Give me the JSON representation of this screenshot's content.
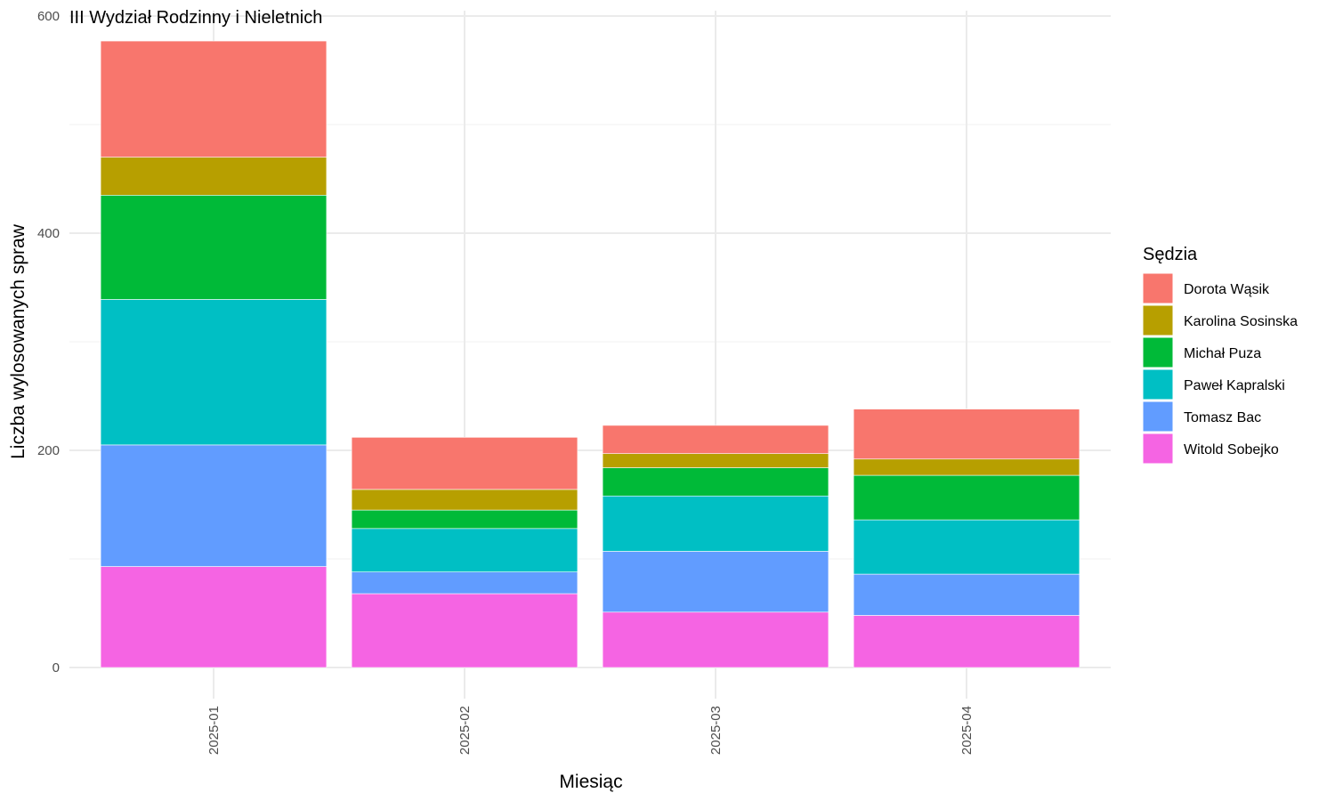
{
  "chart_data": {
    "type": "bar",
    "stacked": true,
    "title": "III Wydział Rodzinny i Nieletnich",
    "xlabel": "Miesiąc",
    "ylabel": "Liczba wylosowanych spraw",
    "ylim": [
      0,
      600
    ],
    "yticks": [
      0,
      200,
      400,
      600
    ],
    "grid": true,
    "legend_title": "Sędzia",
    "legend_position": "right",
    "categories": [
      "2025-01",
      "2025-02",
      "2025-03",
      "2025-04"
    ],
    "series": [
      {
        "name": "Dorota Wąsik",
        "color": "#F8766D",
        "values": [
          107,
          48,
          26,
          46
        ]
      },
      {
        "name": "Karolina Sosinska",
        "color": "#B79F00",
        "values": [
          35,
          19,
          13,
          15
        ]
      },
      {
        "name": "Michał Puza",
        "color": "#00BA38",
        "values": [
          96,
          17,
          26,
          41
        ]
      },
      {
        "name": "Paweł Kapralski",
        "color": "#00BFC4",
        "values": [
          134,
          40,
          51,
          50
        ]
      },
      {
        "name": "Tomasz Bac",
        "color": "#619CFF",
        "values": [
          112,
          20,
          56,
          38
        ]
      },
      {
        "name": "Witold Sobejko",
        "color": "#F564E3",
        "values": [
          93,
          68,
          51,
          48
        ]
      }
    ],
    "stack_order_bottom_to_top": [
      "Witold Sobejko",
      "Tomasz Bac",
      "Paweł Kapralski",
      "Michał Puza",
      "Karolina Sosinska",
      "Dorota Wąsik"
    ]
  }
}
